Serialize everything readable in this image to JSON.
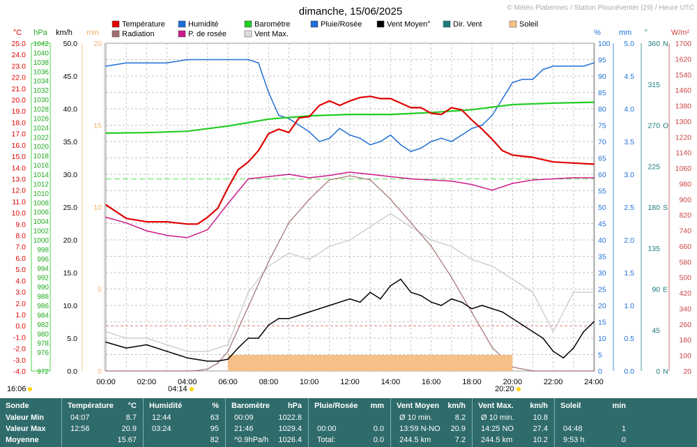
{
  "title": "dimanche, 15/06/2025",
  "copyright": "© Météo Plabennec / Station Plounéventer (29) / Heure UTC",
  "legend": [
    {
      "label": "Température",
      "color": "#e00000"
    },
    {
      "label": "Humidité",
      "color": "#1f6fd6"
    },
    {
      "label": "Baromètre",
      "color": "#22cc22"
    },
    {
      "label": "Pluie/Rosée",
      "color": "#1f6fd6"
    },
    {
      "label": "Vent Moyen°",
      "color": "#000000"
    },
    {
      "label": "Dir. Vent",
      "color": "#1a7a7a"
    },
    {
      "label": "Soleil",
      "color": "#f6c088"
    },
    {
      "label": "Radiation",
      "color": "#a07070"
    },
    {
      "label": "P. de rosée",
      "color": "#cc1a88"
    },
    {
      "label": "Vent Max.",
      "color": "#dddddd"
    }
  ],
  "axis_units": {
    "temp": "°C",
    "baro": "hPa",
    "wind": "km/h",
    "sun": "min",
    "hum": "%",
    "rain": "mm",
    "dir": "°",
    "rad": "W/m²"
  },
  "axes": {
    "temp_ticks": [
      "25.0",
      "24.0",
      "23.0",
      "22.0",
      "21.0",
      "20.0",
      "19.0",
      "18.0",
      "17.0",
      "16.0",
      "15.0",
      "14.0",
      "13.0",
      "12.0",
      "11.0",
      "10.0",
      "9.0",
      "8.0",
      "7.0",
      "6.0",
      "5.0",
      "4.0",
      "3.0",
      "2.0",
      "1.0",
      "0.0",
      "-1.0",
      "-2.0",
      "-3.0",
      "-4.0"
    ],
    "baro_ticks": [
      "1042",
      "1040",
      "1038",
      "1036",
      "1034",
      "1032",
      "1030",
      "1028",
      "1026",
      "1024",
      "1022",
      "1020",
      "1018",
      "1016",
      "1014",
      "1012",
      "1010",
      "1008",
      "1006",
      "1004",
      "1002",
      "1000",
      "998",
      "996",
      "994",
      "992",
      "990",
      "988",
      "986",
      "984",
      "982",
      "980",
      "978",
      "976",
      "972"
    ],
    "wind_ticks": [
      "50.0",
      "45.0",
      "40.0",
      "35.0",
      "30.0",
      "25.0",
      "20.0",
      "15.0",
      "10.0",
      "5.0",
      "0.0"
    ],
    "sun_ticks": [
      "20",
      "15",
      "10",
      "5",
      "0"
    ],
    "hum_ticks": [
      "100",
      "95",
      "90",
      "85",
      "80",
      "75",
      "70",
      "65",
      "60",
      "55",
      "50",
      "45",
      "40",
      "35",
      "30",
      "25",
      "20",
      "15",
      "10",
      "5",
      "0"
    ],
    "rain_ticks": [
      "5.0",
      "4.5",
      "4.0",
      "3.5",
      "3.0",
      "2.5",
      "2.0",
      "1.5",
      "1.0",
      "0.5",
      "0.0"
    ],
    "dir_ticks": [
      "360",
      "315",
      "270",
      "225",
      "180",
      "135",
      "90",
      "45",
      "0"
    ],
    "dir_letters": [
      "N",
      "",
      "O",
      "",
      "S",
      "",
      "E",
      "",
      "N"
    ],
    "rad_ticks": [
      "1700",
      "1620",
      "1540",
      "1460",
      "1380",
      "1300",
      "1220",
      "1140",
      "1060",
      "980",
      "900",
      "820",
      "740",
      "660",
      "580",
      "500",
      "420",
      "340",
      "260",
      "180",
      "100",
      "20"
    ],
    "time_ticks": [
      "00:00",
      "02:00",
      "04:00",
      "06:00",
      "08:00",
      "10:00",
      "12:00",
      "14:00",
      "16:00",
      "18:00",
      "20:00",
      "22:00",
      "24:00"
    ]
  },
  "sun_events": {
    "left": "16:06",
    "sunrise": "04:14",
    "sunset": "20:20"
  },
  "chart_data": {
    "type": "line",
    "title": "dimanche, 15/06/2025",
    "x_unit": "hours UTC",
    "xlim": [
      0,
      24
    ],
    "series": [
      {
        "name": "Température",
        "unit": "°C",
        "ylim": [
          -4,
          25
        ],
        "x": [
          0,
          1,
          2,
          3,
          4,
          4.5,
          5,
          5.5,
          6,
          6.5,
          7,
          7.5,
          8,
          8.5,
          9,
          9.5,
          10,
          10.5,
          11,
          11.5,
          12,
          12.5,
          13,
          13.5,
          14,
          14.5,
          15,
          15.5,
          16,
          16.5,
          17,
          17.5,
          18,
          18.5,
          19,
          19.5,
          20,
          21,
          22,
          23,
          24
        ],
        "y": [
          10.7,
          9.5,
          9.2,
          9.2,
          9.0,
          9.0,
          9.6,
          10.4,
          12.2,
          13.8,
          14.5,
          15.5,
          17.0,
          17.4,
          17.1,
          18.4,
          18.5,
          19.5,
          19.9,
          19.5,
          19.9,
          20.2,
          20.3,
          20.1,
          20.1,
          19.7,
          19.3,
          19.3,
          18.8,
          18.7,
          19.3,
          19.1,
          18.2,
          17.4,
          16.5,
          15.5,
          15.1,
          14.9,
          14.5,
          14.4,
          14.3
        ]
      },
      {
        "name": "Humidité",
        "unit": "%",
        "ylim": [
          0,
          100
        ],
        "x": [
          0,
          1,
          2,
          3,
          4,
          5,
          6,
          7,
          7.5,
          8,
          8.5,
          9,
          9.5,
          10,
          10.5,
          11,
          11.5,
          12,
          12.5,
          13,
          13.5,
          14,
          14.5,
          15,
          15.5,
          16,
          16.5,
          17,
          17.5,
          18,
          18.5,
          19,
          19.5,
          20,
          20.5,
          21,
          21.5,
          22,
          22.5,
          23,
          23.5,
          24
        ],
        "y": [
          93,
          94,
          94,
          94,
          95,
          95,
          95,
          95,
          94,
          85,
          78,
          77,
          75,
          73,
          70,
          71,
          74,
          72,
          71,
          69,
          70,
          72,
          69,
          67,
          68,
          70,
          71,
          70,
          72,
          74,
          75,
          78,
          83,
          88,
          89,
          89,
          92,
          93,
          93,
          93,
          93,
          94
        ]
      },
      {
        "name": "Baromètre",
        "unit": "hPa",
        "ylim": [
          972,
          1042
        ],
        "x": [
          0,
          2,
          4,
          6,
          8,
          10,
          12,
          14,
          16,
          18,
          20,
          22,
          24
        ],
        "y": [
          1022.8,
          1022.9,
          1023.2,
          1024.3,
          1025.8,
          1026.5,
          1026.8,
          1026.8,
          1027.2,
          1027.8,
          1028.9,
          1029.2,
          1029.4
        ]
      },
      {
        "name": "Vent Moyen°",
        "unit": "km/h",
        "ylim": [
          0,
          50
        ],
        "x": [
          0,
          1,
          2,
          3,
          4,
          5,
          5.5,
          6,
          6.5,
          7,
          7.5,
          8,
          8.5,
          9,
          9.5,
          10,
          10.5,
          11,
          11.5,
          12,
          12.5,
          13,
          13.5,
          14,
          14.5,
          15,
          15.5,
          16,
          16.5,
          17,
          17.5,
          18,
          18.5,
          19,
          19.5,
          20,
          20.5,
          21,
          21.5,
          22,
          22.5,
          23,
          23.5,
          24
        ],
        "y": [
          4.4,
          3.5,
          4.0,
          3.0,
          2.0,
          1.5,
          1.5,
          1.8,
          3.5,
          5.0,
          5.0,
          7.0,
          8.0,
          8.0,
          8.5,
          9.0,
          9.5,
          10.0,
          10.5,
          11.0,
          10.5,
          12.0,
          11.0,
          13.0,
          14.0,
          12.0,
          11.5,
          10.5,
          10.0,
          11.0,
          10.5,
          9.5,
          10.0,
          9.5,
          9.0,
          8.0,
          7.0,
          6.0,
          5.0,
          3.0,
          2.0,
          3.5,
          6.0,
          7.5
        ]
      },
      {
        "name": "Vent Max.",
        "unit": "km/h",
        "ylim": [
          0,
          50
        ],
        "x": [
          0,
          1,
          2,
          3,
          4,
          5,
          6,
          7,
          8,
          9,
          10,
          11,
          12,
          13,
          14,
          15,
          16,
          17,
          18,
          19,
          20,
          21,
          22,
          23,
          24
        ],
        "y": [
          6,
          5,
          5,
          4,
          3,
          3,
          4,
          12,
          16,
          18,
          17,
          19,
          20,
          22,
          24,
          22,
          20,
          19,
          17,
          16,
          14,
          12,
          6,
          12,
          12
        ]
      },
      {
        "name": "P. de rosée",
        "unit": "°C",
        "ylim": [
          -4,
          25
        ],
        "x": [
          0,
          1,
          2,
          3,
          4,
          5,
          6,
          7,
          8,
          9,
          10,
          11,
          12,
          13,
          14,
          15,
          16,
          17,
          18,
          19,
          20,
          21,
          22,
          23,
          24
        ],
        "y": [
          9.6,
          9.1,
          8.4,
          8.0,
          7.8,
          8.5,
          10.8,
          13.0,
          13.2,
          13.4,
          13.1,
          13.3,
          13.6,
          13.4,
          13.2,
          13.0,
          12.9,
          12.8,
          12.5,
          12.0,
          12.6,
          12.9,
          13.0,
          13.1,
          13.1
        ]
      },
      {
        "name": "Radiation",
        "unit": "W/m²",
        "ylim": [
          20,
          1700
        ],
        "x": [
          0,
          4,
          4.5,
          5,
          5.5,
          6,
          7,
          8,
          9,
          10,
          11,
          12,
          13,
          14,
          15,
          16,
          17,
          18,
          19,
          20,
          21,
          24
        ],
        "y": [
          20,
          20,
          22,
          30,
          60,
          120,
          350,
          580,
          780,
          900,
          1000,
          1020,
          1000,
          900,
          780,
          660,
          500,
          320,
          140,
          40,
          20,
          20
        ]
      },
      {
        "name": "Soleil",
        "unit": "min",
        "x": [
          6,
          7,
          8,
          9,
          10,
          11,
          12,
          13,
          14,
          15,
          16,
          17,
          18,
          19
        ],
        "y": [
          1,
          1,
          1,
          1,
          1,
          1,
          1,
          1,
          1,
          1,
          1,
          1,
          1,
          1
        ]
      }
    ]
  },
  "stats": {
    "columns": [
      {
        "title": "Sonde",
        "unit": "",
        "rows": [
          [
            "Valeur Min",
            ""
          ],
          [
            "Valeur Max",
            ""
          ],
          [
            "Moyenne",
            ""
          ]
        ]
      },
      {
        "title": "Température",
        "unit": "°C",
        "rows": [
          [
            "04:07",
            "8.7"
          ],
          [
            "12:56",
            "20.9"
          ],
          [
            "",
            "15.67"
          ]
        ]
      },
      {
        "title": "Humidité",
        "unit": "%",
        "rows": [
          [
            "12:44",
            "63"
          ],
          [
            "03:24",
            "95"
          ],
          [
            "",
            "82"
          ]
        ]
      },
      {
        "title": "Baromètre",
        "unit": "hPa",
        "rows": [
          [
            "00:09",
            "1022.8"
          ],
          [
            "21:46",
            "1029.4"
          ],
          [
            "^0.9hPa/h",
            "1026.4"
          ]
        ]
      },
      {
        "title": "Pluie/Rosée",
        "unit": "mm",
        "rows": [
          [
            "",
            ""
          ],
          [
            "00:00",
            "0.0"
          ],
          [
            "Total:",
            "0.0"
          ]
        ]
      },
      {
        "title": "Vent Moyen",
        "unit": "km/h",
        "rows": [
          [
            "Ø 10 min.",
            "8.2"
          ],
          [
            "13:59   N-NO",
            "20.9"
          ],
          [
            "244.5 km",
            "7.2"
          ]
        ]
      },
      {
        "title": "Vent Max.",
        "unit": "km/h",
        "rows": [
          [
            "Ø 10 min.",
            "10.8"
          ],
          [
            "14:25     NO",
            "27.4"
          ],
          [
            "244.5 km",
            "10.2"
          ]
        ]
      },
      {
        "title": "Soleil",
        "unit": "min",
        "rows": [
          [
            "",
            ""
          ],
          [
            "04:48",
            "1"
          ],
          [
            "9:53 h",
            "0"
          ]
        ]
      }
    ]
  }
}
